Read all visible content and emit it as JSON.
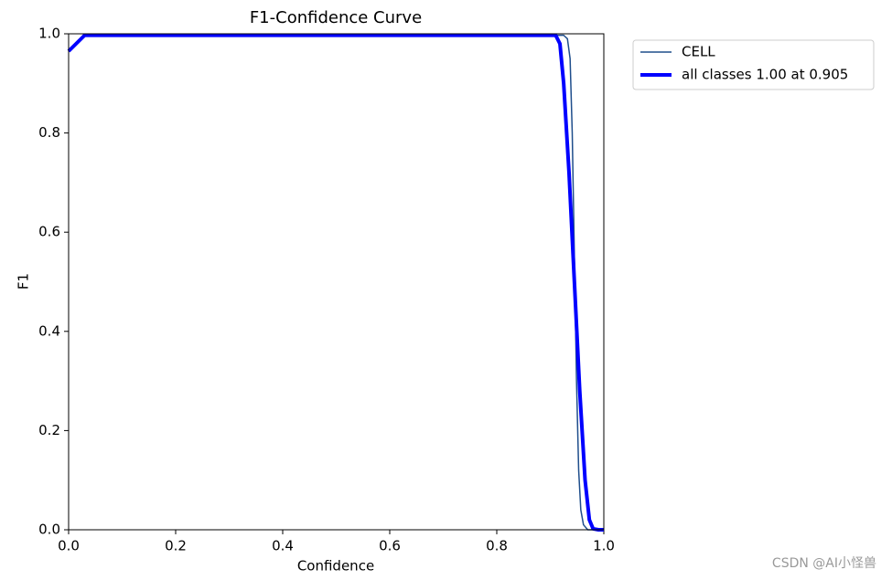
{
  "chart_data": {
    "type": "line",
    "title": "F1-Confidence Curve",
    "x_label": "Confidence",
    "y_label": "F1",
    "xlim": [
      0,
      1
    ],
    "ylim": [
      0,
      1
    ],
    "xticks": [
      {
        "value": 0,
        "label": "0.0"
      },
      0.2,
      0.4,
      0.6,
      0.8,
      {
        "value": 1,
        "label": "1.0"
      }
    ],
    "yticks": [
      {
        "value": 0,
        "label": "0.0"
      },
      0.2,
      0.4,
      0.6,
      0.8,
      {
        "value": 1,
        "label": "1.0"
      }
    ],
    "legend": "outside-upper-right",
    "series": [
      {
        "name": "CELL",
        "color": "#1f4e8c",
        "width": 1.5,
        "x": [
          0,
          0.03,
          0.5,
          0.925,
          0.932,
          0.937,
          0.941,
          0.945,
          0.949,
          0.953,
          0.957,
          0.962,
          0.97,
          1
        ],
        "values": [
          0.965,
          0.997,
          0.997,
          0.997,
          0.99,
          0.95,
          0.8,
          0.55,
          0.3,
          0.12,
          0.04,
          0.01,
          0,
          0
        ]
      },
      {
        "name": "all classes 1.00 at 0.905",
        "color": "#0000ff",
        "width": 4,
        "x": [
          0,
          0.03,
          0.5,
          0.91,
          0.918,
          0.925,
          0.935,
          0.945,
          0.955,
          0.965,
          0.973,
          0.98,
          0.99,
          1
        ],
        "values": [
          0.965,
          0.997,
          0.997,
          0.997,
          0.98,
          0.9,
          0.72,
          0.5,
          0.28,
          0.1,
          0.02,
          0.002,
          0,
          0
        ]
      }
    ],
    "watermark": "CSDN @AI小怪兽"
  }
}
